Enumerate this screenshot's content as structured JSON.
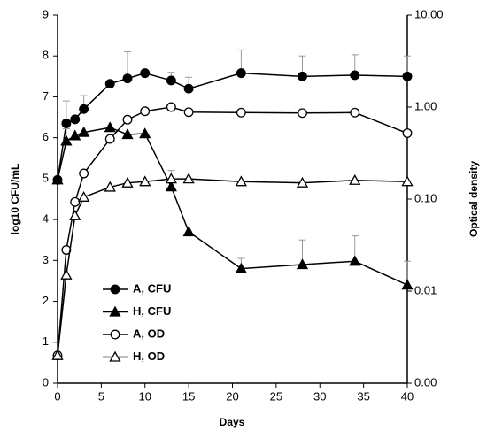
{
  "chart_data": {
    "type": "line",
    "xlabel": "Days",
    "ylabel": "log10 CFU/mL",
    "y2label": "Optical density",
    "x": [
      0,
      1,
      2,
      3,
      6,
      8,
      10,
      13,
      15,
      21,
      28,
      34,
      40
    ],
    "xlim": [
      0,
      40
    ],
    "xticks": [
      0,
      5,
      10,
      15,
      20,
      25,
      30,
      35,
      40
    ],
    "ylim": [
      0,
      9
    ],
    "yticks": [
      0,
      1,
      2,
      3,
      4,
      5,
      6,
      7,
      8,
      9
    ],
    "y2lim": [
      0.001,
      10
    ],
    "y2scale": "log",
    "y2ticks": [
      {
        "value": 0.001,
        "label": "0.00"
      },
      {
        "value": 0.01,
        "label": "0.01"
      },
      {
        "value": 0.1,
        "label": "0.10"
      },
      {
        "value": 1,
        "label": "1.00"
      },
      {
        "value": 10,
        "label": "10.00"
      }
    ],
    "legend": "lower left",
    "series": [
      {
        "name": "A, CFU",
        "color": "#000000",
        "marker": "circle",
        "filled": true,
        "values": [
          4.97,
          6.35,
          6.45,
          6.7,
          7.32,
          7.45,
          7.58,
          7.4,
          7.2,
          7.58,
          7.5,
          7.53,
          7.5
        ],
        "errors": [
          null,
          0.55,
          null,
          0.33,
          null,
          0.65,
          null,
          0.2,
          0.28,
          0.57,
          0.5,
          0.5,
          0.5
        ]
      },
      {
        "name": "H, CFU",
        "color": "#000000",
        "marker": "triangle",
        "filled": true,
        "values": [
          4.97,
          5.92,
          6.05,
          6.13,
          6.25,
          6.08,
          6.1,
          4.8,
          3.7,
          2.8,
          2.9,
          2.98,
          2.4
        ],
        "errors": [
          null,
          0.3,
          null,
          null,
          null,
          null,
          null,
          0.4,
          null,
          0.25,
          0.6,
          0.62,
          0.58
        ]
      },
      {
        "name": "A, OD",
        "color": "#000000",
        "marker": "circle",
        "filled": false,
        "axis": "y2",
        "values": [
          0.002,
          0.028,
          0.093,
          0.19,
          0.45,
          0.73,
          0.9,
          1.0,
          0.88,
          0.87,
          0.86,
          0.87,
          0.52
        ]
      },
      {
        "name": "H, OD",
        "color": "#000000",
        "marker": "triangle",
        "filled": false,
        "axis": "y2",
        "values": [
          0.002,
          0.015,
          0.066,
          0.105,
          0.135,
          0.15,
          0.155,
          0.166,
          0.166,
          0.155,
          0.15,
          0.16,
          0.155
        ]
      }
    ]
  }
}
